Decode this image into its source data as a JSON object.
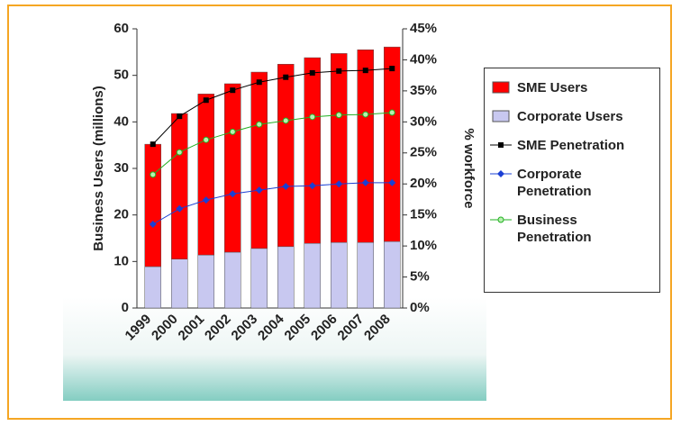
{
  "chart_data": {
    "type": "bar",
    "categories": [
      "1999",
      "2000",
      "2001",
      "2002",
      "2003",
      "2004",
      "2005",
      "2006",
      "2007",
      "2008"
    ],
    "ylabel": "Business Users (millions)",
    "y2label": "% workforce",
    "ylim": [
      0,
      60
    ],
    "yticks": [
      0,
      10,
      20,
      30,
      40,
      50,
      60
    ],
    "y2lim": [
      0,
      45
    ],
    "y2ticks": [
      {
        "value": 0,
        "label": "0%"
      },
      {
        "value": 5,
        "label": "5%"
      },
      {
        "value": 10,
        "label": "10%"
      },
      {
        "value": 15,
        "label": "15%"
      },
      {
        "value": 20,
        "label": "20%"
      },
      {
        "value": 25,
        "label": "25%"
      },
      {
        "value": 30,
        "label": "30%"
      },
      {
        "value": 35,
        "label": "35%"
      },
      {
        "value": 40,
        "label": "40%"
      },
      {
        "value": 45,
        "label": "45%"
      }
    ],
    "series": [
      {
        "name": "SME Users",
        "type": "bar",
        "color": "#ff0000",
        "values": [
          26.3,
          31.3,
          34.6,
          36.2,
          37.9,
          39.2,
          39.9,
          40.6,
          41.4,
          41.8
        ]
      },
      {
        "name": "Corporate Users",
        "type": "bar",
        "color": "#c8c8f0",
        "values": [
          8.9,
          10.5,
          11.4,
          12.0,
          12.8,
          13.2,
          13.9,
          14.1,
          14.1,
          14.3
        ]
      },
      {
        "name": "SME Penetration",
        "type": "line",
        "axis": "y2",
        "color": "#000000",
        "values": [
          26.4,
          30.9,
          33.5,
          35.1,
          36.4,
          37.2,
          37.9,
          38.2,
          38.3,
          38.6
        ]
      },
      {
        "name": "Corporate Penetration",
        "type": "line",
        "axis": "y2",
        "color": "#1a3fd4",
        "values": [
          13.5,
          16.0,
          17.4,
          18.4,
          19.0,
          19.6,
          19.7,
          20.0,
          20.2,
          20.2
        ]
      },
      {
        "name": "Business Penetration",
        "type": "line",
        "axis": "y2",
        "color": "#22b022",
        "values": [
          21.5,
          25.1,
          27.1,
          28.4,
          29.6,
          30.2,
          30.8,
          31.1,
          31.2,
          31.5
        ]
      }
    ]
  }
}
